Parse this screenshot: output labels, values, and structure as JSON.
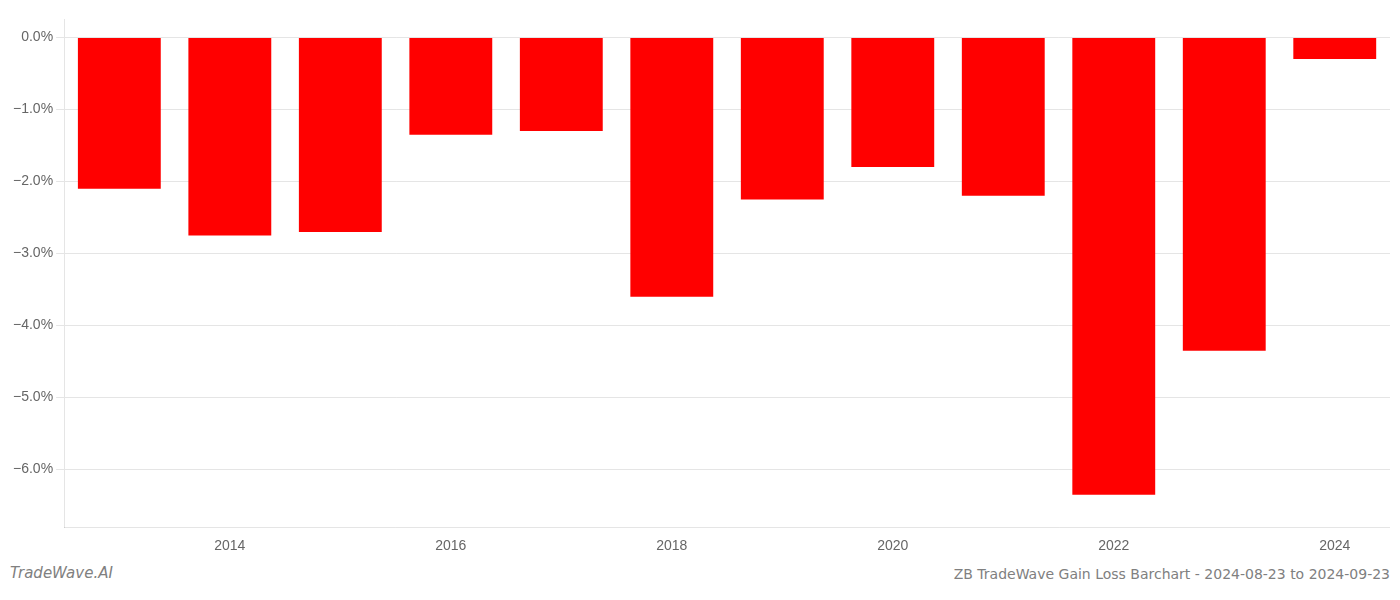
{
  "chart_data": {
    "type": "bar",
    "categories": [
      null,
      "2014",
      null,
      "2016",
      null,
      "2018",
      null,
      "2020",
      null,
      "2022",
      null,
      "2024"
    ],
    "values": [
      -2.1,
      -2.75,
      -2.7,
      -1.35,
      -1.3,
      -3.6,
      -2.25,
      -1.8,
      -2.2,
      -6.35,
      -4.35,
      -0.3
    ],
    "color": "#ff0000",
    "ylim": [
      -6.8,
      0.25
    ],
    "yticks": [
      {
        "value": 0.0,
        "label": "0.0%"
      },
      {
        "value": -1.0,
        "label": "−1.0%"
      },
      {
        "value": -2.0,
        "label": "−2.0%"
      },
      {
        "value": -3.0,
        "label": "−3.0%"
      },
      {
        "value": -4.0,
        "label": "−4.0%"
      },
      {
        "value": -5.0,
        "label": "−5.0%"
      },
      {
        "value": -6.0,
        "label": "−6.0%"
      }
    ],
    "grid": true,
    "annotations": [
      "TradeWave.AI",
      "ZB TradeWave Gain Loss Barchart - 2024-08-23 to 2024-09-23"
    ]
  }
}
